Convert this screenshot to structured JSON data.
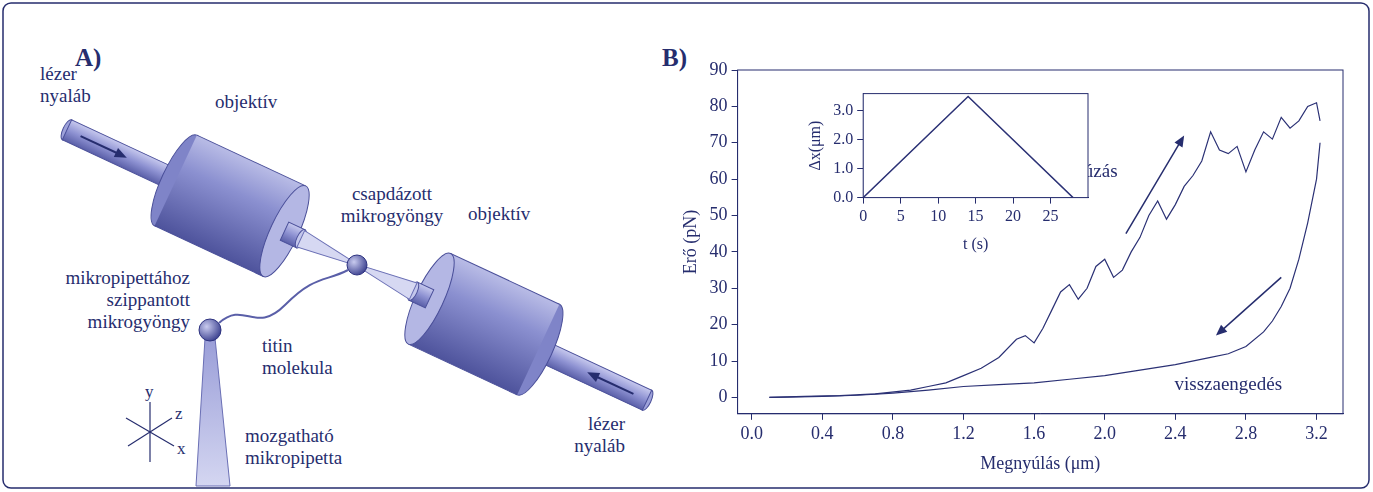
{
  "panel_a": {
    "letter": "A)",
    "labels": {
      "laser_left": "lézer nyaláb",
      "objective_left": "objektív",
      "trapped_bead": "csapdázott mikrogyöngy",
      "objective_right": "objektív",
      "laser_right": "lézer nyaláb",
      "pipette_bead": "mikropipettához szippantott mikrogyöngy",
      "titin": "titin molekula",
      "pipette": "mozgatható mikropipetta",
      "axis_x": "x",
      "axis_y": "y",
      "axis_z": "z"
    }
  },
  "panel_b": {
    "letter": "B)"
  },
  "chart_data": [
    {
      "type": "line",
      "x_label": "Megnyúlás (μm)",
      "y_label": "Erő (pN)",
      "xlim": [
        -0.08,
        3.35
      ],
      "ylim": [
        -4.5,
        90
      ],
      "xticks": [
        {
          "value": 0,
          "label": "0.0"
        },
        0.4,
        0.8,
        1.2,
        1.6,
        {
          "value": 2,
          "label": "2.0"
        },
        2.4,
        2.8,
        3.2
      ],
      "yticks": [
        0,
        10,
        20,
        30,
        40,
        50,
        60,
        70,
        80,
        90
      ],
      "grid": false,
      "series": [
        {
          "name": "húzás",
          "color": "#2b3175",
          "x": [
            0.1,
            0.3,
            0.5,
            0.7,
            0.9,
            1.0,
            1.1,
            1.2,
            1.3,
            1.4,
            1.5,
            1.55,
            1.6,
            1.65,
            1.7,
            1.75,
            1.8,
            1.85,
            1.9,
            1.95,
            2.0,
            2.05,
            2.1,
            2.15,
            2.2,
            2.25,
            2.3,
            2.35,
            2.4,
            2.45,
            2.5,
            2.55,
            2.6,
            2.65,
            2.7,
            2.75,
            2.8,
            2.85,
            2.9,
            2.95,
            3.0,
            3.05,
            3.1,
            3.15,
            3.2,
            3.22
          ],
          "values": [
            0,
            0.3,
            0.5,
            1,
            2,
            3,
            4,
            6,
            8,
            11,
            16,
            17,
            15,
            19,
            24,
            29,
            31,
            27,
            30,
            36,
            38,
            33,
            35,
            40,
            44,
            50,
            54,
            49,
            53,
            58,
            61,
            65,
            73,
            68,
            67,
            69,
            62,
            68,
            73,
            71,
            77,
            74,
            76,
            80,
            81,
            76
          ]
        },
        {
          "name": "visszaengedés",
          "color": "#2b3175",
          "x": [
            3.22,
            3.2,
            3.15,
            3.1,
            3.05,
            3.0,
            2.95,
            2.9,
            2.8,
            2.7,
            2.6,
            2.4,
            2.2,
            2.0,
            1.8,
            1.6,
            1.4,
            1.2,
            1.0,
            0.8,
            0.6,
            0.4,
            0.2,
            0.1
          ],
          "values": [
            70,
            60,
            48,
            38,
            30,
            25,
            21,
            18,
            14,
            12,
            11,
            9,
            7.5,
            6,
            5,
            4,
            3.5,
            3,
            2,
            1.2,
            0.6,
            0.3,
            0.1,
            0
          ]
        }
      ]
    },
    {
      "type": "line",
      "x_label": "t (s)",
      "y_label": "Δx(μm)",
      "xlim": [
        0,
        30
      ],
      "ylim": [
        0,
        3.6
      ],
      "xticks": [
        0,
        5,
        10,
        15,
        20,
        25
      ],
      "yticks": [
        {
          "value": 0,
          "label": "0.0"
        },
        {
          "value": 1,
          "label": "1.0"
        },
        {
          "value": 2,
          "label": "2.0"
        },
        {
          "value": 3,
          "label": "3.0"
        }
      ],
      "grid": false,
      "x": [
        0,
        14,
        28
      ],
      "series": [
        {
          "color": "#2b3175",
          "values": [
            0,
            3.5,
            0
          ]
        }
      ]
    }
  ]
}
